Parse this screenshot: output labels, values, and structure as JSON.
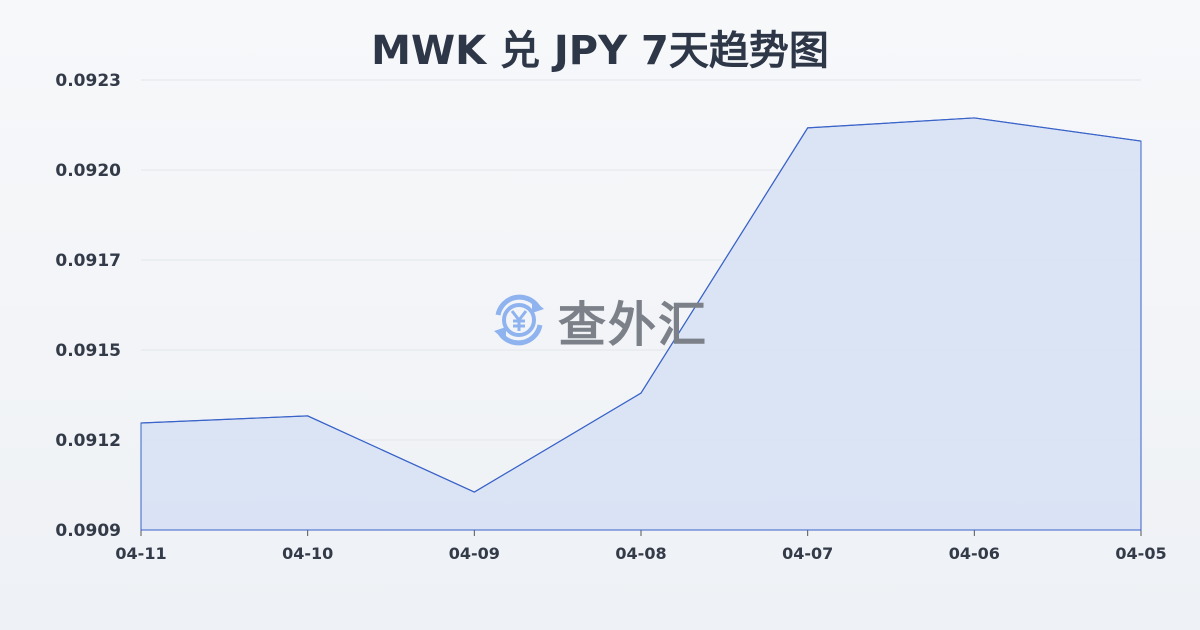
{
  "chart_data": {
    "type": "area",
    "title": "MWK 兑 JPY 7天趋势图",
    "xlabel": "",
    "ylabel": "",
    "categories": [
      "04-11",
      "04-10",
      "04-09",
      "04-08",
      "04-07",
      "04-06",
      "04-05"
    ],
    "series": [
      {
        "values": [
          0.091233,
          0.091255,
          0.091018,
          0.091326,
          0.092151,
          0.092182,
          0.09211
        ]
      }
    ],
    "ylim": [
      0.0909,
      0.0923
    ],
    "yticks": [
      0.0909,
      0.09118,
      0.09146,
      0.09174,
      0.09202,
      0.0923
    ],
    "ytick_labels": [
      "0.0909",
      "0.0912",
      "0.0915",
      "0.0917",
      "0.0920",
      "0.0923"
    ],
    "grid": true,
    "line_color": "#3a63c9",
    "fill_color": "#d6e0f5"
  },
  "watermark": {
    "text": "查外汇",
    "icon": "yen-exchange-icon",
    "icon_color": "#8fb3ef"
  }
}
